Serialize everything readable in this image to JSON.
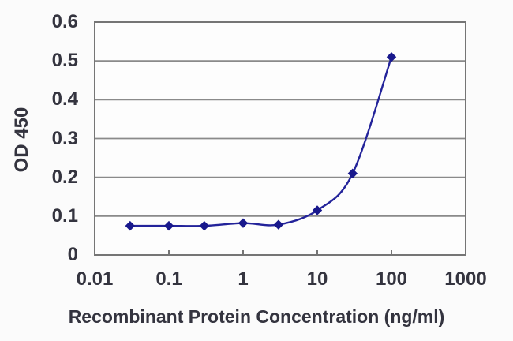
{
  "chart_data": {
    "type": "line",
    "title": "",
    "xlabel": "Recombinant Protein Concentration (ng/ml)",
    "ylabel": "OD 450",
    "x_scale": "log",
    "xlim": [
      0.01,
      1000
    ],
    "ylim": [
      0,
      0.6
    ],
    "x_tick_labels": [
      "0.01",
      "0.1",
      "1",
      "10",
      "100",
      "1000"
    ],
    "y_tick_labels": [
      "0",
      "0.1",
      "0.2",
      "0.3",
      "0.4",
      "0.5",
      "0.6"
    ],
    "grid": "horizontal-only",
    "legend": "none",
    "series": [
      {
        "x": [
          0.03,
          0.1,
          0.3,
          1,
          3,
          10,
          30,
          100
        ],
        "y": [
          0.075,
          0.075,
          0.075,
          0.082,
          0.078,
          0.115,
          0.21,
          0.51
        ],
        "marker": "diamond",
        "line_style": "smooth",
        "color": "#23239a",
        "marker_color": "#18188c"
      }
    ],
    "colors": {
      "grid": "#8a8a8a",
      "frame": "#757575",
      "text": "#34343f",
      "background": "#fbfbfb",
      "plot_background": "#fdfdfd"
    }
  }
}
